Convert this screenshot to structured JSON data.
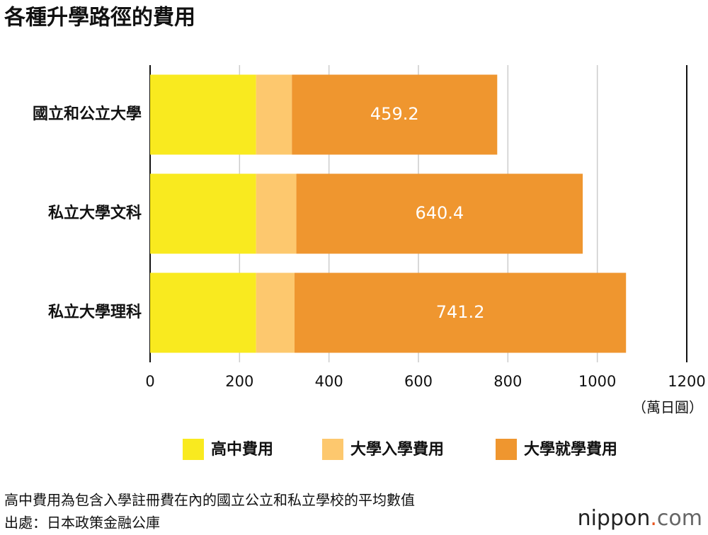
{
  "chart_data": {
    "type": "stacked-bar-horizontal",
    "title": "各種升學路徑的費用",
    "categories": [
      "國立和公立大學",
      "私立大學文科",
      "私立大學理科"
    ],
    "series": [
      {
        "name": "高中費用",
        "color": "#f9ea1f",
        "values": [
          237,
          237,
          237
        ]
      },
      {
        "name": "大學入學費用",
        "color": "#fdc86e",
        "values": [
          80,
          90,
          86
        ]
      },
      {
        "name": "大學就學費用",
        "color": "#ef962f",
        "values": [
          459.2,
          640.4,
          741.2
        ],
        "data_labels": true
      }
    ],
    "xlim": [
      0,
      1200
    ],
    "xticks": [
      0,
      200,
      400,
      600,
      800,
      1000,
      1200
    ],
    "grid": true,
    "x_unit": "（萬日圓）",
    "notes": [
      "高中費用為包含入學註冊費在內的國立公立和私立學校的平均數值",
      "出處：日本政策金融公庫"
    ],
    "logo": [
      "nippon",
      ".",
      "com"
    ]
  }
}
